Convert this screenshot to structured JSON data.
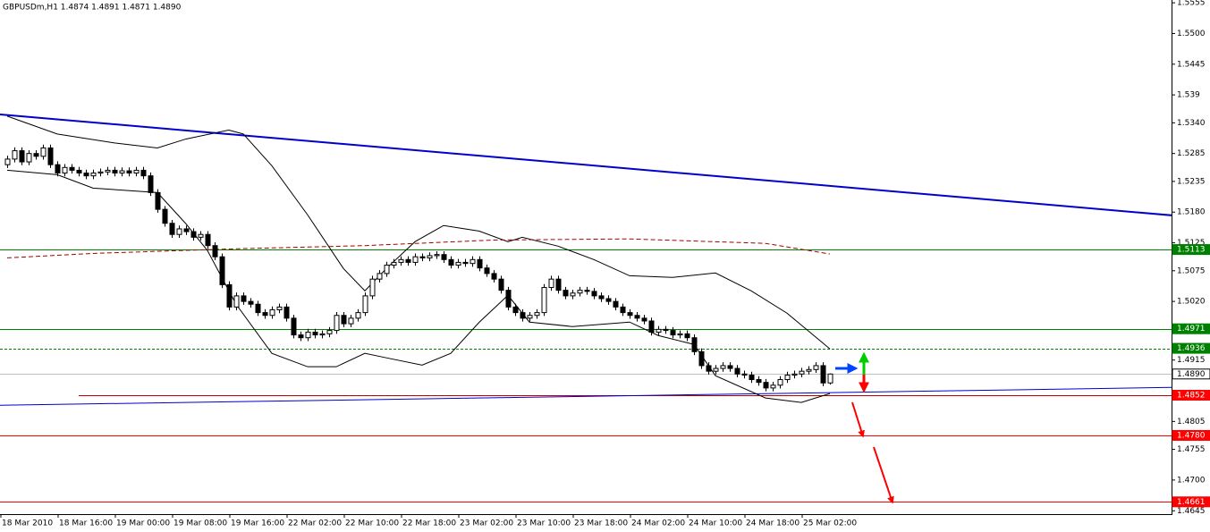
{
  "chart_data": {
    "type": "candlestick",
    "header": "GBPUSDm,H1  1.4874 1.4891 1.4871 1.4890",
    "ylim": [
      1.4639,
      1.556
    ],
    "yticks": [
      1.5555,
      {
        "value": 1.55,
        "label": "1.5500"
      },
      1.5445,
      1.539,
      {
        "value": 1.534,
        "label": "1.5340"
      },
      1.5285,
      1.5235,
      {
        "value": 1.518,
        "label": "1.5180"
      },
      1.5125,
      1.5075,
      {
        "value": 1.502,
        "label": "1.5020"
      },
      1.4915,
      {
        "value": 1.4805,
        "label": "1.4805"
      },
      1.4755,
      {
        "value": 1.47,
        "label": "1.4700"
      },
      1.4645
    ],
    "x_labels": [
      "18 Mar 2010",
      "18 Mar 16:00",
      "19 Mar 00:00",
      "19 Mar 08:00",
      "19 Mar 16:00",
      "22 Mar 02:00",
      "22 Mar 10:00",
      "22 Mar 18:00",
      "23 Mar 02:00",
      "23 Mar 10:00",
      "23 Mar 18:00",
      "24 Mar 02:00",
      "24 Mar 10:00",
      "24 Mar 18:00",
      "25 Mar 02:00"
    ],
    "up_color": "#ffffff",
    "down_color": "#000000",
    "wick_color": "#000000",
    "candles": {
      "open": [
        1.5265,
        1.5275,
        1.529,
        1.527,
        1.5285,
        1.528,
        1.5295,
        1.5265,
        1.525,
        1.526,
        1.5255,
        1.525,
        1.5245,
        1.525,
        1.5252,
        1.5255,
        1.525,
        1.5254,
        1.525,
        1.5255,
        1.5245,
        1.5215,
        1.5185,
        1.516,
        1.514,
        1.515,
        1.5145,
        1.5135,
        1.514,
        1.512,
        1.51,
        1.505,
        1.501,
        1.503,
        1.502,
        1.5015,
        1.5,
        1.4995,
        1.5005,
        1.501,
        1.499,
        1.496,
        1.4955,
        1.4965,
        1.496,
        1.4962,
        1.4968,
        1.4995,
        1.498,
        1.499,
        1.5,
        1.503,
        1.506,
        1.507,
        1.5085,
        1.509,
        1.5095,
        1.509,
        1.51,
        1.5098,
        1.5102,
        1.5104,
        1.5095,
        1.5085,
        1.509,
        1.5088,
        1.5095,
        1.508,
        1.507,
        1.506,
        1.504,
        1.501,
        1.5,
        1.499,
        1.4995,
        1.5,
        1.5045,
        1.506,
        1.504,
        1.503,
        1.5035,
        1.504,
        1.5038,
        1.503,
        1.5025,
        1.502,
        1.501,
        1.5,
        1.4995,
        1.499,
        1.4985,
        1.4965,
        1.497,
        1.4968,
        1.496,
        1.4962,
        1.4955,
        1.493,
        1.4905,
        1.4895,
        1.49,
        1.4905,
        1.49,
        1.489,
        1.4888,
        1.488,
        1.4875,
        1.4865,
        1.487,
        1.488,
        1.4888,
        1.489,
        1.4895,
        1.4898,
        1.4905,
        1.4874
      ],
      "high": [
        1.5281,
        1.5296,
        1.5296,
        1.5291,
        1.5291,
        1.5301,
        1.5301,
        1.5271,
        1.5266,
        1.5266,
        1.5261,
        1.5256,
        1.5256,
        1.5258,
        1.5261,
        1.5261,
        1.526,
        1.526,
        1.5261,
        1.5261,
        1.5251,
        1.5221,
        1.5191,
        1.5166,
        1.5156,
        1.5156,
        1.5151,
        1.5146,
        1.5146,
        1.5126,
        1.5106,
        1.5056,
        1.5036,
        1.5036,
        1.5026,
        1.5021,
        1.5006,
        1.5011,
        1.5016,
        1.5016,
        1.4996,
        1.4966,
        1.4971,
        1.4971,
        1.4968,
        1.4974,
        1.5001,
        1.5001,
        1.4996,
        1.5006,
        1.5036,
        1.5066,
        1.5076,
        1.5091,
        1.5096,
        1.5101,
        1.5101,
        1.5106,
        1.5106,
        1.5108,
        1.511,
        1.511,
        1.5101,
        1.5096,
        1.5096,
        1.5101,
        1.5101,
        1.5086,
        1.5076,
        1.5066,
        1.5046,
        1.5016,
        1.5006,
        1.5001,
        1.5006,
        1.5051,
        1.5066,
        1.5066,
        1.5046,
        1.5041,
        1.5046,
        1.5046,
        1.5044,
        1.5036,
        1.5031,
        1.5026,
        1.5016,
        1.5006,
        1.5001,
        1.4996,
        1.4991,
        1.4976,
        1.4976,
        1.4974,
        1.4968,
        1.4968,
        1.4961,
        1.4936,
        1.4911,
        1.4906,
        1.4911,
        1.4911,
        1.4906,
        1.4896,
        1.4894,
        1.4886,
        1.4881,
        1.4876,
        1.4886,
        1.4894,
        1.4896,
        1.4901,
        1.4904,
        1.4911,
        1.4911,
        1.4891
      ],
      "low": [
        1.5259,
        1.5269,
        1.5264,
        1.5264,
        1.5274,
        1.5274,
        1.5259,
        1.5244,
        1.5244,
        1.5249,
        1.5244,
        1.5239,
        1.5239,
        1.5244,
        1.5246,
        1.5244,
        1.5244,
        1.5244,
        1.5244,
        1.5239,
        1.5209,
        1.5179,
        1.5154,
        1.5134,
        1.5134,
        1.5139,
        1.5129,
        1.5129,
        1.5114,
        1.5094,
        1.5044,
        1.5004,
        1.5004,
        1.5014,
        1.5009,
        1.4994,
        1.4989,
        1.4989,
        1.4999,
        1.4984,
        1.4954,
        1.4949,
        1.4949,
        1.4954,
        1.4954,
        1.4956,
        1.4962,
        1.4974,
        1.4974,
        1.4984,
        1.4994,
        1.5024,
        1.5054,
        1.5064,
        1.5079,
        1.5084,
        1.5084,
        1.5084,
        1.5092,
        1.5092,
        1.5096,
        1.5089,
        1.5079,
        1.5079,
        1.5082,
        1.5082,
        1.5074,
        1.5064,
        1.5054,
        1.5034,
        1.5004,
        1.4994,
        1.4984,
        1.4984,
        1.4989,
        1.4994,
        1.5039,
        1.5034,
        1.5024,
        1.5024,
        1.5029,
        1.5032,
        1.5024,
        1.5019,
        1.5014,
        1.5004,
        1.4994,
        1.4989,
        1.4984,
        1.4979,
        1.4959,
        1.4959,
        1.4962,
        1.4954,
        1.4954,
        1.4949,
        1.4924,
        1.4899,
        1.4889,
        1.4889,
        1.4894,
        1.4894,
        1.4884,
        1.4882,
        1.4874,
        1.4869,
        1.4859,
        1.4859,
        1.4864,
        1.4874,
        1.4882,
        1.4884,
        1.4889,
        1.4892,
        1.4868,
        1.4871
      ],
      "close": [
        1.5275,
        1.529,
        1.527,
        1.5285,
        1.528,
        1.5295,
        1.5265,
        1.525,
        1.526,
        1.5255,
        1.525,
        1.5245,
        1.525,
        1.5252,
        1.5255,
        1.525,
        1.5254,
        1.525,
        1.5255,
        1.5245,
        1.5215,
        1.5185,
        1.516,
        1.514,
        1.515,
        1.5145,
        1.5135,
        1.514,
        1.512,
        1.51,
        1.505,
        1.501,
        1.503,
        1.502,
        1.5015,
        1.5,
        1.4995,
        1.5005,
        1.501,
        1.499,
        1.496,
        1.4955,
        1.4965,
        1.496,
        1.4962,
        1.4968,
        1.4995,
        1.498,
        1.499,
        1.5,
        1.503,
        1.506,
        1.507,
        1.5085,
        1.509,
        1.5095,
        1.509,
        1.51,
        1.5098,
        1.5102,
        1.5104,
        1.5095,
        1.5085,
        1.509,
        1.5088,
        1.5095,
        1.508,
        1.507,
        1.506,
        1.504,
        1.501,
        1.5,
        1.499,
        1.4995,
        1.5,
        1.5045,
        1.506,
        1.504,
        1.503,
        1.5035,
        1.504,
        1.5038,
        1.503,
        1.5025,
        1.502,
        1.501,
        1.5,
        1.4995,
        1.499,
        1.4985,
        1.4965,
        1.497,
        1.4968,
        1.496,
        1.4962,
        1.4955,
        1.493,
        1.4905,
        1.4895,
        1.49,
        1.4905,
        1.49,
        1.489,
        1.4888,
        1.488,
        1.4875,
        1.4865,
        1.487,
        1.488,
        1.4888,
        1.489,
        1.4895,
        1.4898,
        1.4905,
        1.4874,
        1.489
      ]
    },
    "overlays": [
      {
        "x": [
          0,
          7,
          15,
          21,
          25,
          31,
          33,
          37,
          42,
          47,
          50,
          53,
          57,
          61,
          66,
          70,
          72,
          77,
          82,
          87,
          93,
          99,
          104,
          109,
          115
        ],
        "values": [
          1.5352,
          1.532,
          1.5304,
          1.5295,
          1.5311,
          1.5327,
          1.532,
          1.5263,
          1.5175,
          1.5079,
          1.5039,
          1.5079,
          1.5127,
          1.5156,
          1.5146,
          1.5127,
          1.5135,
          1.5119,
          1.5095,
          1.5066,
          1.5063,
          1.5071,
          1.5039,
          1.4999,
          1.4935
        ],
        "color": "#000000",
        "dash": false
      },
      {
        "x": [
          0,
          7,
          12,
          21,
          25,
          28,
          32,
          37,
          42,
          46,
          50,
          53,
          58,
          62,
          66,
          70,
          73,
          79,
          87,
          91,
          96,
          99,
          106,
          111,
          115
        ],
        "values": [
          1.5255,
          1.5247,
          1.5223,
          1.5215,
          1.5159,
          1.5111,
          1.5015,
          1.4927,
          1.4903,
          1.4903,
          1.4927,
          1.4919,
          1.4906,
          1.4927,
          1.4983,
          1.5031,
          1.4983,
          1.4975,
          1.4983,
          1.4959,
          1.4943,
          1.4887,
          1.4847,
          1.4839,
          1.4855
        ],
        "color": "#000000",
        "dash": false
      },
      {
        "x": [
          0,
          12,
          31,
          50,
          68,
          87,
          106,
          115
        ],
        "values": [
          1.5098,
          1.5106,
          1.5114,
          1.512,
          1.513,
          1.5132,
          1.5124,
          1.5105
        ],
        "color": "#a00000",
        "dash": true
      }
    ],
    "trendlines": [
      {
        "x": [
          -1,
          163
        ],
        "values": [
          1.5355,
          1.5174
        ],
        "color": "#0000cc",
        "width": 2
      },
      {
        "x": [
          -1,
          163
        ],
        "values": [
          1.4834,
          1.4866
        ],
        "color": "#0000cc",
        "width": 1
      }
    ],
    "levels": [
      {
        "value": 1.5113,
        "label": "1.5113",
        "color": "#008000",
        "dash": false,
        "label_bg": "#008000",
        "label_color": "#ffffff"
      },
      {
        "value": 1.4971,
        "label": "1.4971",
        "color": "#008000",
        "dash": false,
        "label_bg": "#008000",
        "label_color": "#ffffff"
      },
      {
        "value": 1.4936,
        "label": "1.4936",
        "color": "#008000",
        "dash": true,
        "label_bg": "#008000",
        "label_color": "#ffffff"
      },
      {
        "value": 1.489,
        "label": "1.4890",
        "color": "#c0c0c0",
        "dash": false,
        "label_bg": "#ffffff",
        "label_color": "#000000"
      },
      {
        "value": 1.4852,
        "label": "1.4852",
        "color": "#c00000",
        "dash": false,
        "label_bg": "#ff0000",
        "label_color": "#ffffff",
        "x_start": 10
      },
      {
        "value": 1.478,
        "label": "1.4780",
        "color": "#ff0000",
        "dash": false,
        "label_bg": "#ff0000",
        "label_color": "#ffffff"
      },
      {
        "value": 1.4661,
        "label": "1.4661",
        "color": "#ff0000",
        "dash": false,
        "label_bg": "#ff0000",
        "label_color": "#ffffff"
      }
    ]
  }
}
